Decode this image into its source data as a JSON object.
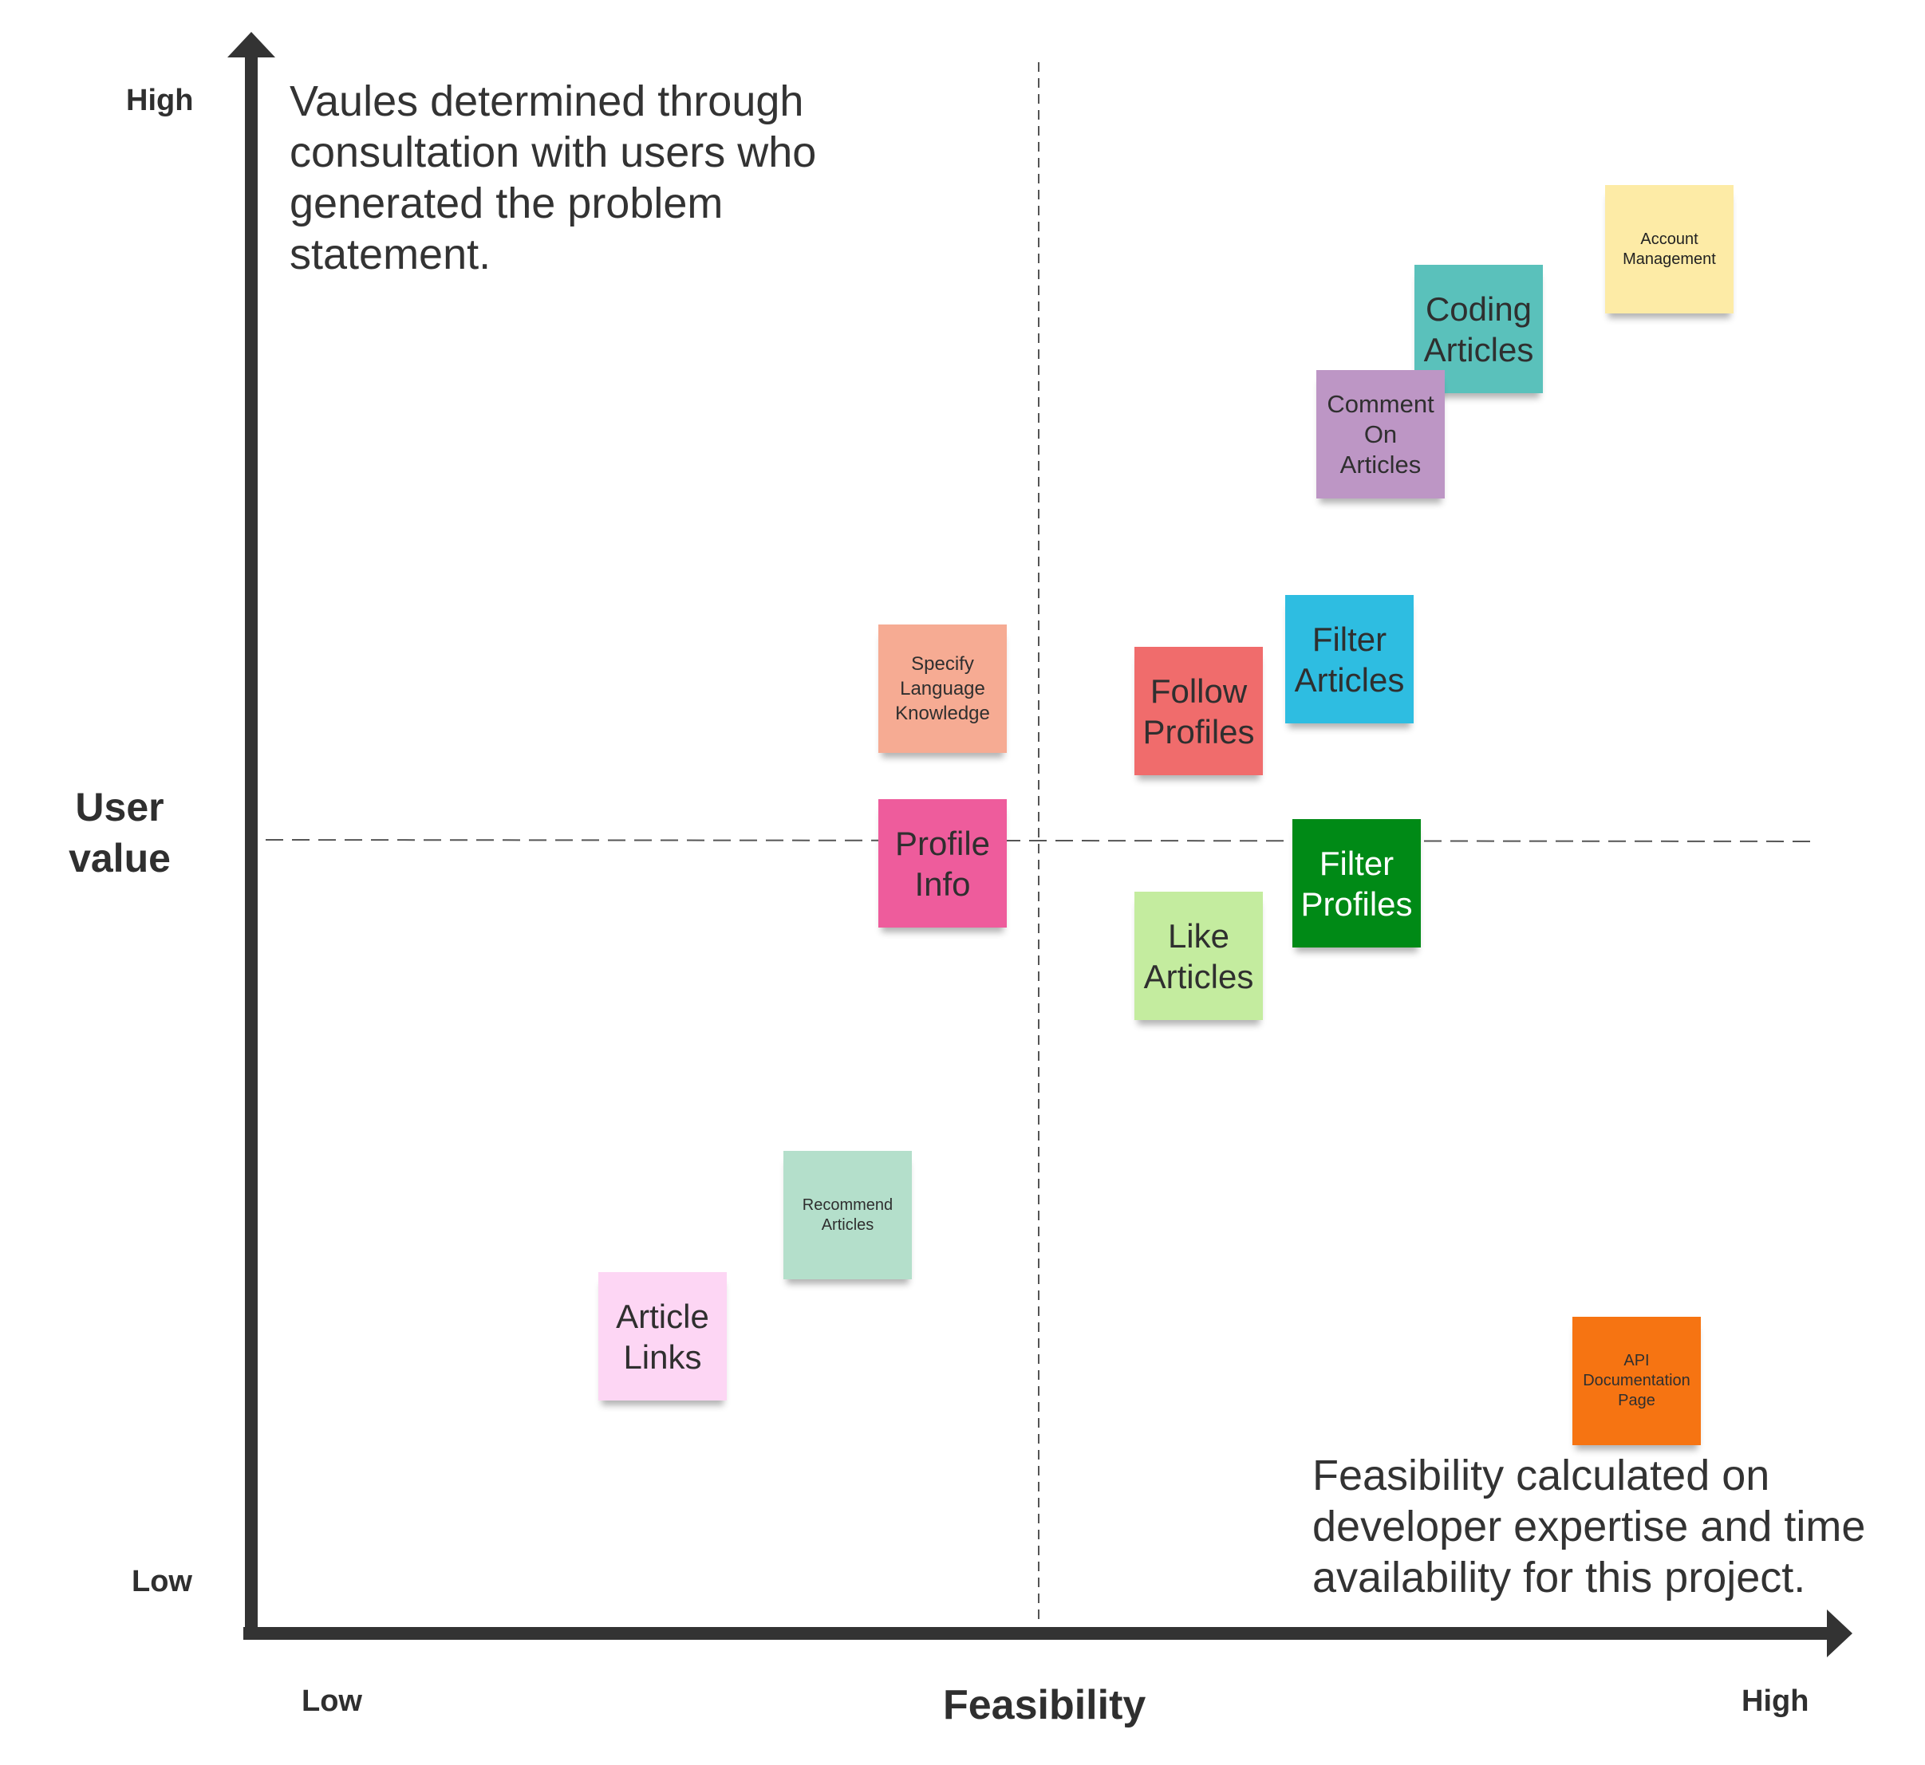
{
  "y_axis": {
    "title_line1": "User",
    "title_line2": "value",
    "high_label": "High",
    "low_label": "Low"
  },
  "x_axis": {
    "title": "Feasibility",
    "low_label": "Low",
    "high_label": "High"
  },
  "notes": {
    "top_left": "Vaules determined through consultation with users who generated the problem statement.",
    "bottom_right": "Feasibility calculated on developer expertise and time availability for this project."
  },
  "stickies": [
    {
      "text": "Account\nManagement",
      "color": "#fdeba6",
      "text_color": "#222222"
    },
    {
      "text": "Coding\nArticles",
      "color": "#5ac1bb",
      "text_color": "#2f2f2f"
    },
    {
      "text": "Comment\nOn\nArticles",
      "color": "#bd96c5",
      "text_color": "#2f2f2f"
    },
    {
      "text": "Filter\nArticles",
      "color": "#2ebde1",
      "text_color": "#2f2f2f"
    },
    {
      "text": "Follow\nProfiles",
      "color": "#f06c6c",
      "text_color": "#2f2f2f"
    },
    {
      "text": "Specify\nLanguage\nKnowledge",
      "color": "#f6ab93",
      "text_color": "#2f2f2f"
    },
    {
      "text": "Profile\nInfo",
      "color": "#ee5c9c",
      "text_color": "#2f2f2f"
    },
    {
      "text": "Filter\nProfiles",
      "color": "#008a16",
      "text_color": "#ffffff"
    },
    {
      "text": "Like\nArticles",
      "color": "#c4ec9f",
      "text_color": "#2f2f2f"
    },
    {
      "text": "Recommend\nArticles",
      "color": "#b4dfcb",
      "text_color": "#2f2f2f"
    },
    {
      "text": "Article\nLinks",
      "color": "#fdd6f4",
      "text_color": "#2f2f2f"
    },
    {
      "text": "API\nDocumentation\nPage",
      "color": "#f67412",
      "text_color": "#2f2f2f"
    }
  ]
}
